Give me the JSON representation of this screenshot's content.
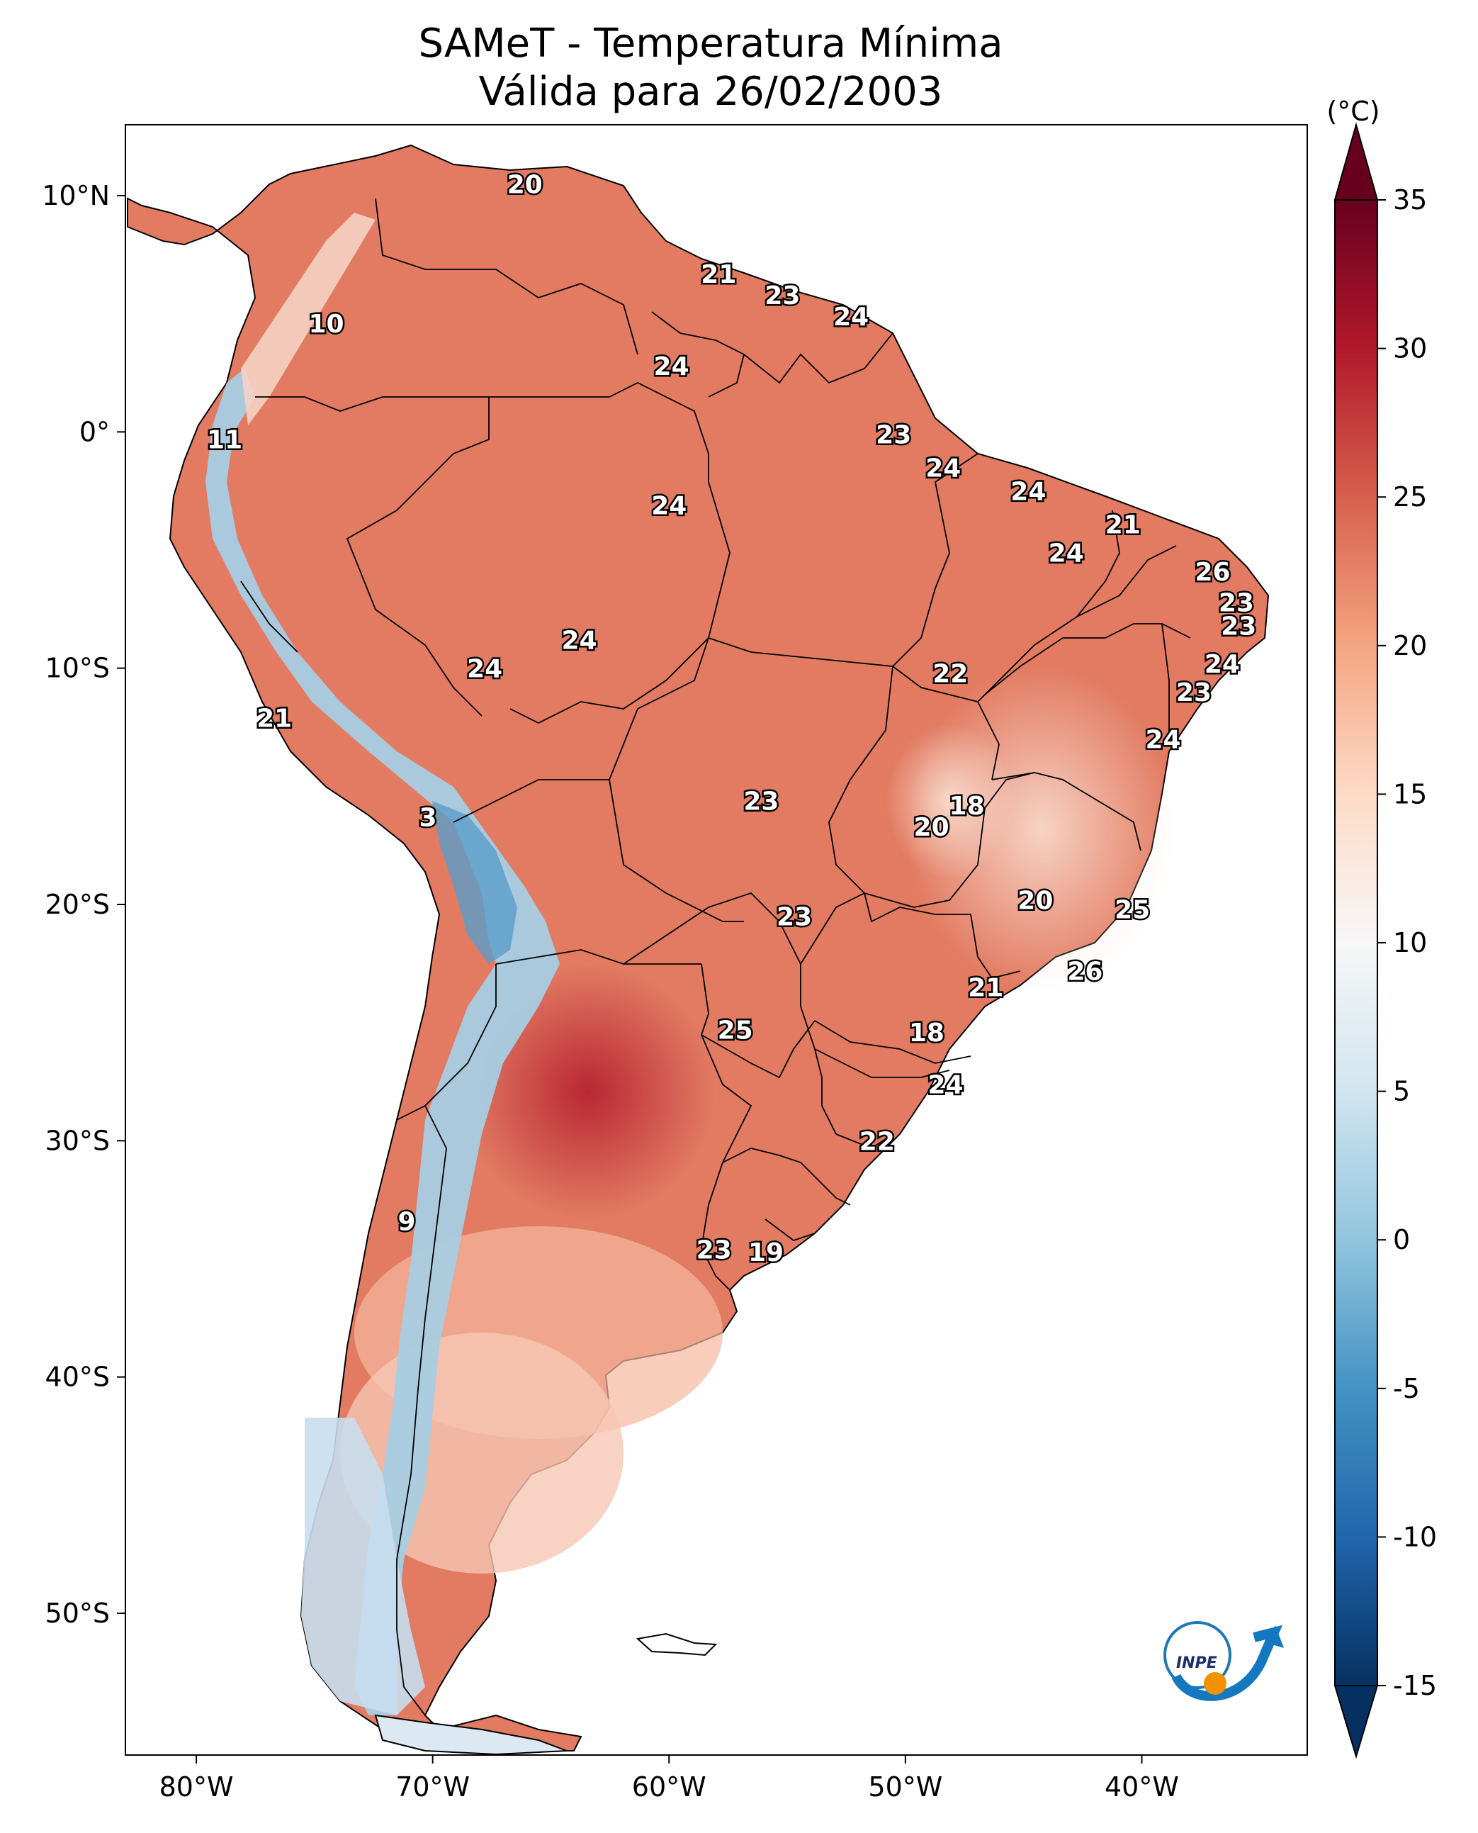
{
  "title_line1": "SAMeT - Temperatura Mínima",
  "title_line2": "Válida para 26/02/2003",
  "map": {
    "lon_range": [
      -83,
      -33
    ],
    "lat_range": [
      -56,
      13
    ],
    "lon_ticks": [
      {
        "value": -80,
        "label": "80°W"
      },
      {
        "value": -70,
        "label": "70°W"
      },
      {
        "value": -60,
        "label": "60°W"
      },
      {
        "value": -50,
        "label": "50°W"
      },
      {
        "value": -40,
        "label": "40°W"
      }
    ],
    "lat_ticks": [
      {
        "value": 10,
        "label": "10°N"
      },
      {
        "value": 0,
        "label": "0°"
      },
      {
        "value": -10,
        "label": "10°S"
      },
      {
        "value": -20,
        "label": "20°S"
      },
      {
        "value": -30,
        "label": "30°S"
      },
      {
        "value": -40,
        "label": "40°S"
      },
      {
        "value": -50,
        "label": "50°S"
      }
    ],
    "station_labels": [
      {
        "lon": -66.1,
        "lat": 10.5,
        "value": "20"
      },
      {
        "lon": -74.5,
        "lat": 4.6,
        "value": "10"
      },
      {
        "lon": -57.9,
        "lat": 6.7,
        "value": "21"
      },
      {
        "lon": -55.2,
        "lat": 5.8,
        "value": "23"
      },
      {
        "lon": -52.3,
        "lat": 4.9,
        "value": "24"
      },
      {
        "lon": -59.9,
        "lat": 2.8,
        "value": "24"
      },
      {
        "lon": -78.8,
        "lat": -0.3,
        "value": "11"
      },
      {
        "lon": -50.5,
        "lat": -0.1,
        "value": "23"
      },
      {
        "lon": -48.4,
        "lat": -1.5,
        "value": "24"
      },
      {
        "lon": -44.8,
        "lat": -2.5,
        "value": "24"
      },
      {
        "lon": -40.8,
        "lat": -3.9,
        "value": "21"
      },
      {
        "lon": -60.0,
        "lat": -3.1,
        "value": "24"
      },
      {
        "lon": -43.2,
        "lat": -5.1,
        "value": "24"
      },
      {
        "lon": -37.0,
        "lat": -5.9,
        "value": "26"
      },
      {
        "lon": -36.0,
        "lat": -7.2,
        "value": "23"
      },
      {
        "lon": -35.9,
        "lat": -8.2,
        "value": "23"
      },
      {
        "lon": -36.6,
        "lat": -9.8,
        "value": "24"
      },
      {
        "lon": -37.8,
        "lat": -11.0,
        "value": "23"
      },
      {
        "lon": -63.8,
        "lat": -8.8,
        "value": "24"
      },
      {
        "lon": -67.8,
        "lat": -10.0,
        "value": "24"
      },
      {
        "lon": -48.1,
        "lat": -10.2,
        "value": "22"
      },
      {
        "lon": -39.1,
        "lat": -13.0,
        "value": "24"
      },
      {
        "lon": -76.7,
        "lat": -12.1,
        "value": "21"
      },
      {
        "lon": -56.1,
        "lat": -15.6,
        "value": "23"
      },
      {
        "lon": -47.4,
        "lat": -15.8,
        "value": "18"
      },
      {
        "lon": -48.9,
        "lat": -16.7,
        "value": "20"
      },
      {
        "lon": -70.2,
        "lat": -16.3,
        "value": "3"
      },
      {
        "lon": -44.5,
        "lat": -19.8,
        "value": "20"
      },
      {
        "lon": -40.4,
        "lat": -20.2,
        "value": "25"
      },
      {
        "lon": -54.7,
        "lat": -20.5,
        "value": "23"
      },
      {
        "lon": -42.4,
        "lat": -22.8,
        "value": "26"
      },
      {
        "lon": -46.6,
        "lat": -23.5,
        "value": "21"
      },
      {
        "lon": -57.2,
        "lat": -25.3,
        "value": "25"
      },
      {
        "lon": -49.1,
        "lat": -25.4,
        "value": "18"
      },
      {
        "lon": -48.3,
        "lat": -27.6,
        "value": "24"
      },
      {
        "lon": -51.2,
        "lat": -30.0,
        "value": "22"
      },
      {
        "lon": -71.1,
        "lat": -33.4,
        "value": "9"
      },
      {
        "lon": -58.1,
        "lat": -34.6,
        "value": "23"
      },
      {
        "lon": -55.9,
        "lat": -34.7,
        "value": "19"
      }
    ]
  },
  "colorbar": {
    "unit": "(°C)",
    "min": -15,
    "max": 35,
    "ticks": [
      {
        "value": 35,
        "label": "35"
      },
      {
        "value": 30,
        "label": "30"
      },
      {
        "value": 25,
        "label": "25"
      },
      {
        "value": 20,
        "label": "20"
      },
      {
        "value": 15,
        "label": "15"
      },
      {
        "value": 10,
        "label": "10"
      },
      {
        "value": 5,
        "label": "5"
      },
      {
        "value": 0,
        "label": "0"
      },
      {
        "value": -5,
        "label": "-5"
      },
      {
        "value": -10,
        "label": "-10"
      },
      {
        "value": -15,
        "label": "-15"
      }
    ],
    "colors": [
      "#053061",
      "#2166ac",
      "#4393c3",
      "#92c5de",
      "#d1e5f0",
      "#f7f7f7",
      "#fddbc7",
      "#f4a582",
      "#d6604d",
      "#b2182b",
      "#67001f"
    ]
  },
  "logo_text": "INPE"
}
